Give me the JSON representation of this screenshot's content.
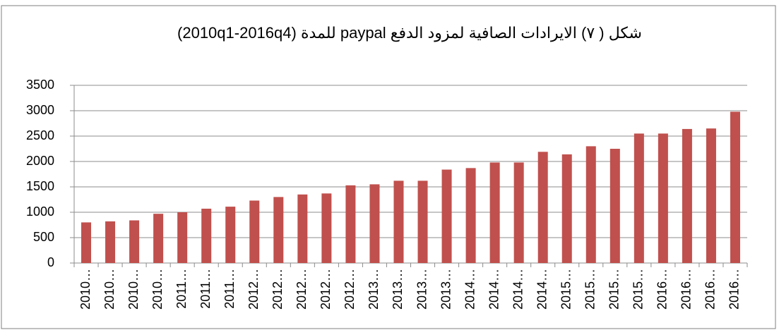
{
  "chart_data": {
    "type": "bar",
    "title": "شكل ( ٧) الايرادات الصافية لمزود الدفع paypal للمدة (2010q1-2016q4)",
    "categories": [
      "2010…",
      "2010…",
      "2010…",
      "2010…",
      "2011…",
      "2011…",
      "2011…",
      "2012…",
      "2012…",
      "2012…",
      "2012…",
      "2012…",
      "2013…",
      "2013…",
      "2013…",
      "2013…",
      "2014…",
      "2014…",
      "2014…",
      "2014…",
      "2015…",
      "2015…",
      "2015…",
      "2015…",
      "2016…",
      "2016…",
      "2016…",
      "2016…"
    ],
    "values": [
      800,
      820,
      840,
      970,
      1000,
      1070,
      1110,
      1230,
      1300,
      1350,
      1370,
      1530,
      1550,
      1620,
      1620,
      1840,
      1870,
      1980,
      1980,
      2190,
      2140,
      2300,
      2250,
      2550,
      2550,
      2640,
      2650,
      2980
    ],
    "color": "#c0504d",
    "ylim": [
      0,
      3500
    ],
    "yticks": [
      0,
      500,
      1000,
      1500,
      2000,
      2500,
      3000,
      3500
    ],
    "grid": true
  }
}
